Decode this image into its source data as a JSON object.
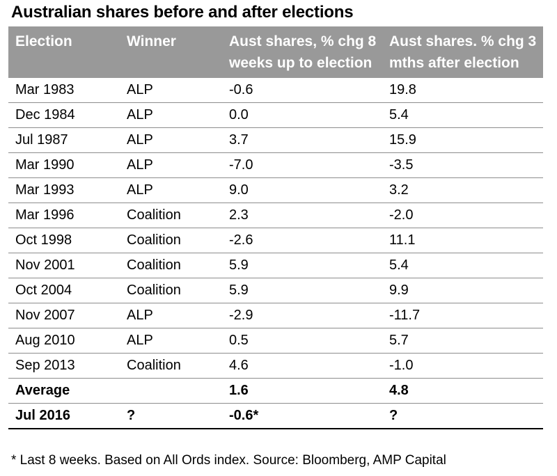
{
  "title": "Australian shares before and after elections",
  "headers": [
    "Election",
    "Winner",
    "Aust shares, % chg  8 weeks up to election",
    "Aust shares. % chg 3 mths after election"
  ],
  "rows": [
    [
      "Mar 1983",
      "ALP",
      "-0.6",
      "19.8"
    ],
    [
      "Dec 1984",
      "ALP",
      "0.0",
      "5.4"
    ],
    [
      "Jul 1987",
      "ALP",
      "3.7",
      "15.9"
    ],
    [
      "Mar 1990",
      "ALP",
      "-7.0",
      "-3.5"
    ],
    [
      "Mar 1993",
      "ALP",
      "9.0",
      "3.2"
    ],
    [
      "Mar 1996",
      "Coalition",
      "2.3",
      "-2.0"
    ],
    [
      "Oct 1998",
      "Coalition",
      "-2.6",
      "11.1"
    ],
    [
      "Nov 2001",
      "Coalition",
      "5.9",
      "5.4"
    ],
    [
      "Oct 2004",
      "Coalition",
      "5.9",
      "9.9"
    ],
    [
      "Nov 2007",
      "ALP",
      "-2.9",
      "-11.7"
    ],
    [
      "Aug 2010",
      "ALP",
      "0.5",
      "5.7"
    ],
    [
      "Sep 2013",
      "Coalition",
      "4.6",
      "-1.0"
    ]
  ],
  "average": [
    "Average",
    "",
    "1.6",
    "4.8"
  ],
  "current": [
    "Jul 2016",
    "?",
    "-0.6*",
    "?"
  ],
  "footnote": "* Last 8 weeks. Based on All Ords index. Source: Bloomberg, AMP Capital",
  "colors": {
    "header_bg": "#999999",
    "header_text": "#ffffff"
  }
}
